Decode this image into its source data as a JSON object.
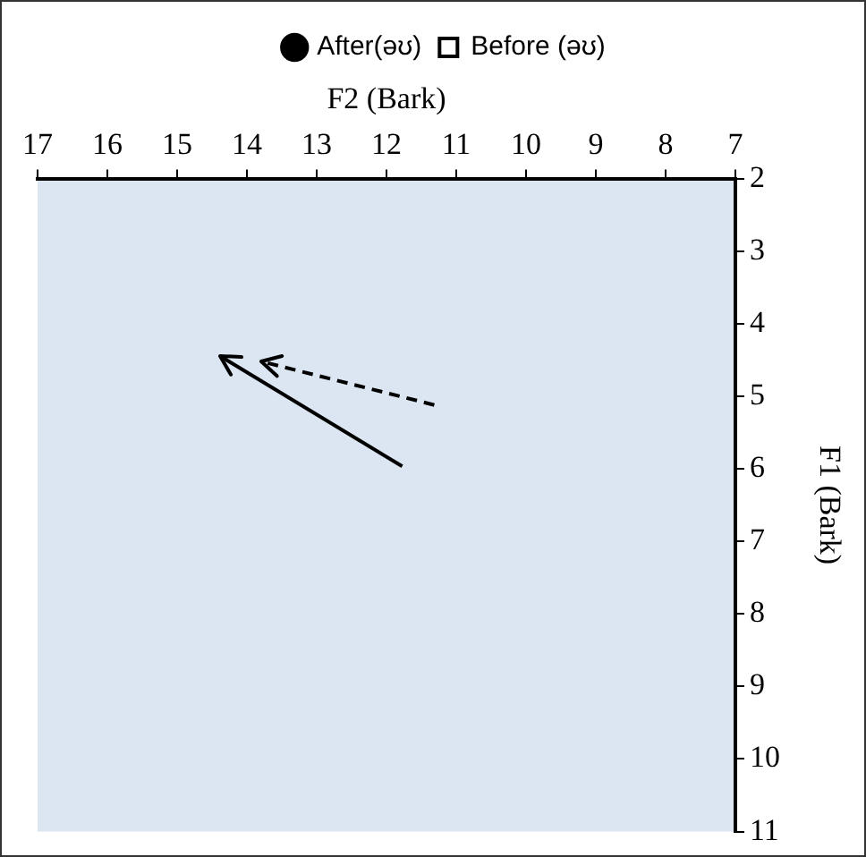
{
  "chart_data": {
    "type": "line",
    "xlabel": "F2 (Bark)",
    "ylabel": "F1 (Bark)",
    "xlim": [
      17,
      7
    ],
    "xticks": [
      17,
      16,
      15,
      14,
      13,
      12,
      11,
      10,
      9,
      8,
      7
    ],
    "ylim": [
      11,
      2
    ],
    "yticks": [
      2,
      3,
      4,
      5,
      6,
      7,
      8,
      9,
      10,
      11
    ],
    "grid": false,
    "legend": "top",
    "marker": "none",
    "series": [
      {
        "name": "After(əʊ)",
        "color": "#000000",
        "x": [
          11.78,
          14.39
        ],
        "values": [
          5.96,
          4.44
        ],
        "line_style": "solid"
      },
      {
        "name": "Before (əʊ)",
        "color": "#000000",
        "x": [
          11.31,
          13.79
        ],
        "values": [
          5.12,
          4.52
        ],
        "line_style": "dashed"
      }
    ]
  }
}
